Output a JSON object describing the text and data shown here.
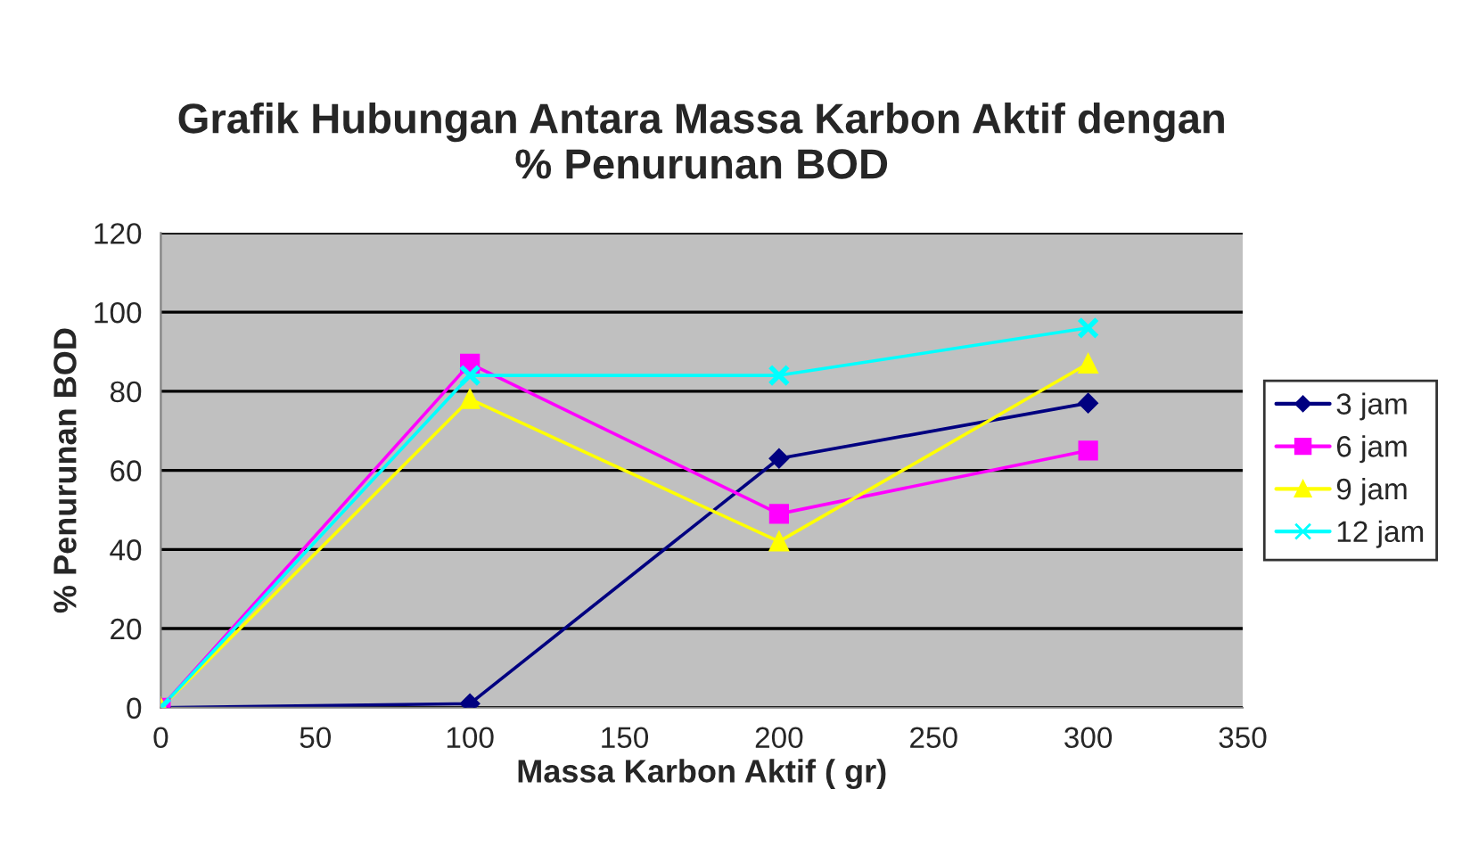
{
  "chart_data": {
    "type": "line",
    "title": "Grafik Hubungan Antara Massa Karbon Aktif dengan\n% Penurunan BOD",
    "xlabel": "Massa Karbon Aktif ( gr)",
    "ylabel": "% Penurunan BOD",
    "x": [
      0,
      100,
      200,
      300
    ],
    "series": [
      {
        "name": "3 jam",
        "color": "#000080",
        "marker": "diamond",
        "values": [
          0,
          1,
          63,
          77
        ]
      },
      {
        "name": "6 jam",
        "color": "#ff00ff",
        "marker": "square",
        "values": [
          0,
          87,
          49,
          65
        ]
      },
      {
        "name": "9 jam",
        "color": "#ffff00",
        "marker": "triangle",
        "values": [
          0,
          78,
          42,
          87
        ]
      },
      {
        "name": "12 jam",
        "color": "#00ffff",
        "marker": "cross",
        "values": [
          0,
          84,
          84,
          96
        ]
      }
    ],
    "xlim": [
      0,
      350
    ],
    "xticks": [
      0,
      50,
      100,
      150,
      200,
      250,
      300,
      350
    ],
    "ylim": [
      0,
      120
    ],
    "yticks": [
      0,
      20,
      40,
      60,
      80,
      100,
      120
    ],
    "grid": "y",
    "legend": "right",
    "line_style": "solid"
  }
}
